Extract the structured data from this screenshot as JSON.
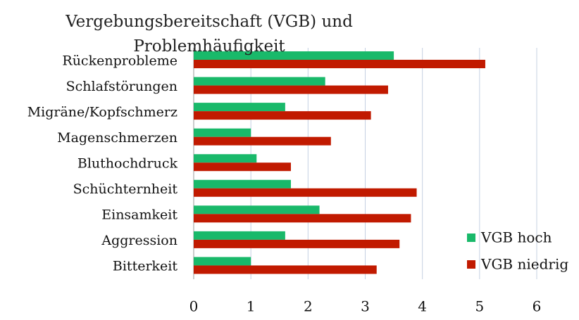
{
  "chart_data": {
    "type": "hbar",
    "title": "Vergebungsbereitschaft (VGB) und Problemhäufigkeit",
    "categories": [
      "Rückenprobleme",
      "Schlafstörungen",
      "Migräne/Kopfschmerz",
      "Magenschmerzen",
      "Bluthochdruck",
      "Schüchternheit",
      "Einsamkeit",
      "Aggression",
      "Bitterkeit"
    ],
    "series": [
      {
        "name": "VGB hoch",
        "color": "#19b96a",
        "values": [
          3.5,
          2.3,
          1.6,
          1.0,
          1.1,
          1.7,
          2.2,
          1.6,
          1.0
        ]
      },
      {
        "name": "VGB niedrig",
        "color": "#c11a00",
        "values": [
          5.1,
          3.4,
          3.1,
          2.4,
          1.7,
          3.9,
          3.8,
          3.6,
          3.2
        ]
      }
    ],
    "xlim": [
      0,
      6
    ],
    "xticks": [
      0,
      1,
      2,
      3,
      4,
      5,
      6
    ],
    "grid": true,
    "legend": "lower right"
  }
}
